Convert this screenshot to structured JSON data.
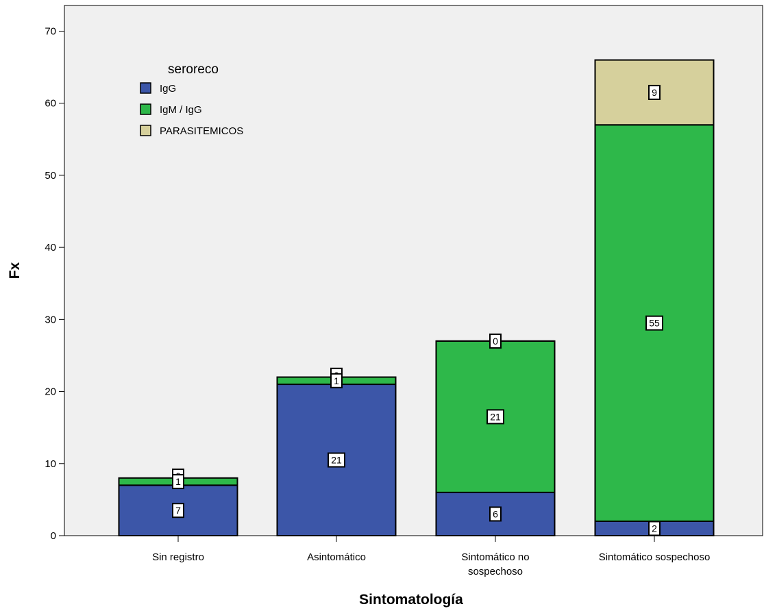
{
  "chart_data": {
    "type": "bar",
    "stacked": true,
    "title": "",
    "xlabel": "Sintomatología",
    "ylabel": "Fx",
    "ylim": [
      0,
      70
    ],
    "yticks": [
      0,
      10,
      20,
      30,
      40,
      50,
      60,
      70
    ],
    "categories": [
      [
        "Sin registro"
      ],
      [
        "Asintomático"
      ],
      [
        "Sintomático no",
        "sospechoso"
      ],
      [
        "Sintomático sospechoso"
      ]
    ],
    "legend": {
      "title": "seroreco",
      "placement": "top-left"
    },
    "grid": false,
    "series": [
      {
        "name": "IgG",
        "color": "#3c56a8",
        "values": [
          7,
          21,
          6,
          2
        ]
      },
      {
        "name": "IgM / IgG",
        "color": "#2eb84a",
        "values": [
          1,
          1,
          21,
          55
        ]
      },
      {
        "name": "PARASITEMICOS",
        "color": "#d6d09c",
        "values": [
          0,
          0,
          0,
          9
        ]
      }
    ],
    "data_labels": [
      [
        [
          "7"
        ],
        [
          "1",
          "0"
        ],
        [
          "0"
        ]
      ],
      [
        [
          "21"
        ],
        [
          "1",
          "0"
        ],
        [
          "0"
        ]
      ],
      [
        [
          "6"
        ],
        [
          "21"
        ],
        [
          "0"
        ]
      ],
      [
        [
          "2"
        ],
        [
          "55"
        ],
        [
          "9"
        ]
      ]
    ]
  },
  "colors": {
    "plot_background": "#f0f0f0"
  }
}
